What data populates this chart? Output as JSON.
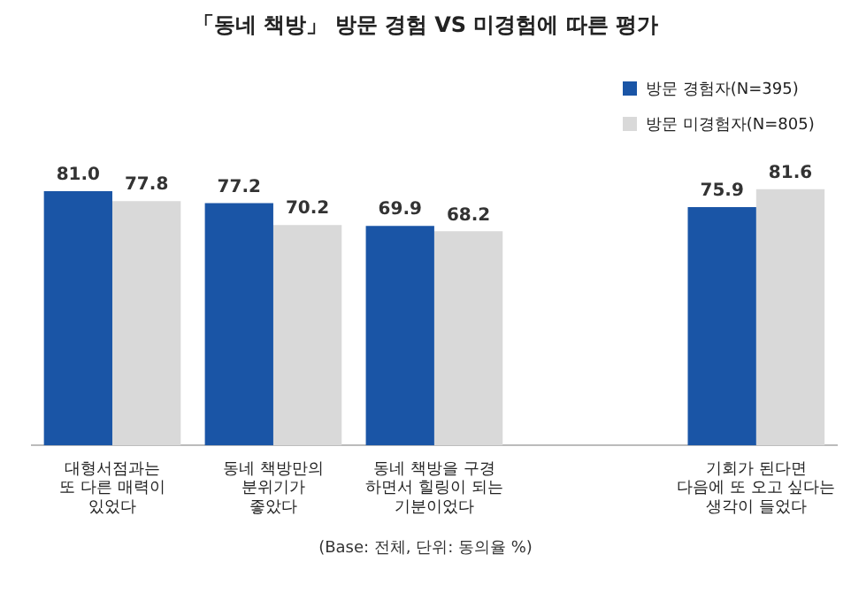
{
  "chart_data": {
    "type": "bar",
    "title": "「동네 책방」 방문 경험 VS 미경험에 따른 평가",
    "categories": [
      "대형서점과는\n또 다른 매력이\n있었다",
      "동네 책방만의\n분위기가\n좋았다",
      "동네 책방을 구경\n하면서 힐링이 되는\n기분이었다",
      null,
      "기회가 된다면\n다음에 또 오고 싶다는\n생각이 들었다"
    ],
    "series": [
      {
        "name": "방문 경험자(N=395)",
        "color": "#1a55a6",
        "values": [
          81.0,
          77.2,
          69.9,
          null,
          75.9
        ],
        "value_labels": [
          "81.0",
          "77.2",
          "69.9",
          null,
          "75.9"
        ]
      },
      {
        "name": "방문 미경험자(N=805)",
        "color": "#d9d9d9",
        "values": [
          77.8,
          70.2,
          68.2,
          null,
          81.6
        ],
        "value_labels": [
          "77.8",
          "70.2",
          "68.2",
          null,
          "81.6"
        ]
      }
    ],
    "legend": "top right",
    "tick_labels": "x",
    "grid": false,
    "annotations": [
      "(Base: 전체, 단위: 동의율 %)"
    ]
  }
}
